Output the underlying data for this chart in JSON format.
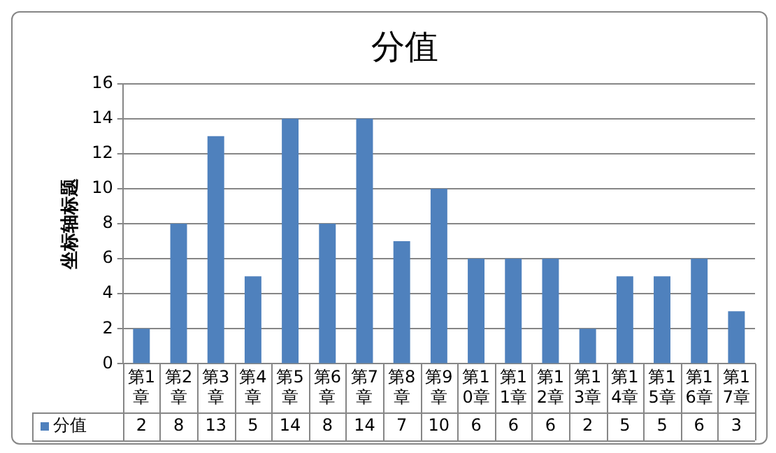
{
  "chart_data": {
    "type": "bar",
    "title": "分值",
    "ylabel": "坐标轴标题",
    "categories": [
      "第1章",
      "第2章",
      "第3章",
      "第4章",
      "第5章",
      "第6章",
      "第7章",
      "第8章",
      "第9章",
      "第10章",
      "第11章",
      "第12章",
      "第13章",
      "第14章",
      "第15章",
      "第16章",
      "第17章"
    ],
    "series": [
      {
        "name": "分值",
        "color": "#4f81bd",
        "values": [
          2,
          8,
          13,
          5,
          14,
          8,
          14,
          7,
          10,
          6,
          6,
          6,
          2,
          5,
          5,
          6,
          3
        ]
      }
    ],
    "ylim": [
      0,
      16
    ],
    "yticks": [
      0,
      2,
      4,
      6,
      8,
      10,
      12,
      14,
      16
    ],
    "grid": "y",
    "legend": "bottom",
    "data_labels": true
  }
}
